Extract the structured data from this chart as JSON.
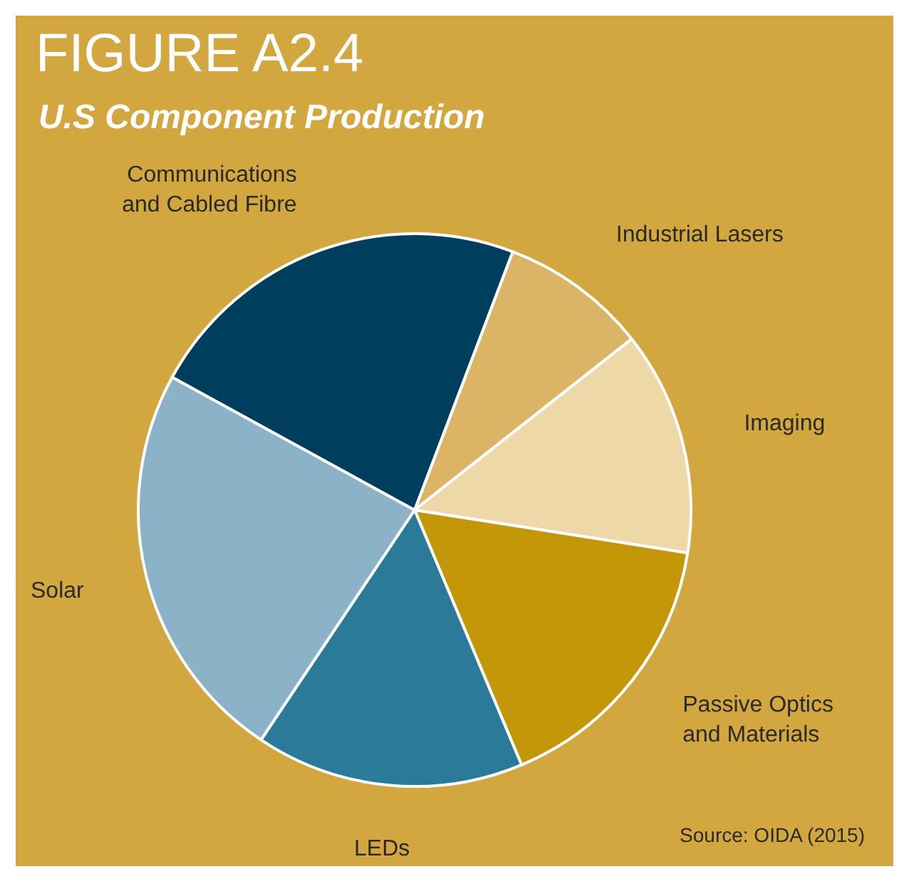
{
  "chart_data": {
    "type": "pie",
    "title": "FIGURE A2.4",
    "subtitle": "U.S Component Production",
    "categories": [
      "Industrial Lasers",
      "Imaging",
      "Passive Optics and Materials",
      "LEDs",
      "Solar",
      "Communications and Cabled Fibre"
    ],
    "values": [
      8.6,
      13.1,
      16.2,
      15.7,
      23.6,
      22.8
    ],
    "colors": [
      "#dcb465",
      "#eed8a8",
      "#c49708",
      "#2b7a99",
      "#8cb2c8",
      "#003e5e"
    ],
    "legend": false,
    "annotations": [
      "Source: OIDA (2015)"
    ]
  }
}
